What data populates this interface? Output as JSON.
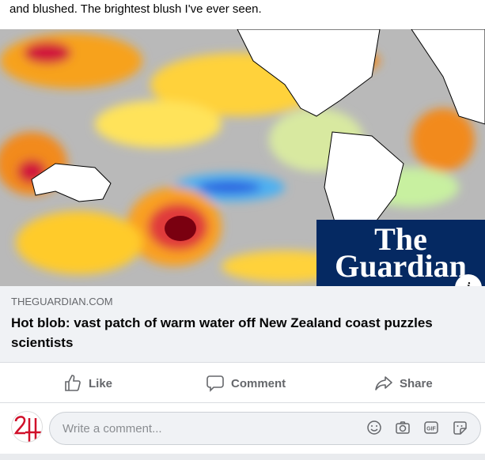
{
  "post": {
    "caption": "and blushed. The brightest blush I've ever seen."
  },
  "link_preview": {
    "logo": {
      "line1": "The",
      "line2": "Guardian",
      "bg_color": "#052962"
    },
    "info_label": "i",
    "domain": "THEGUARDIAN.COM",
    "title": "Hot blob: vast patch of warm water off New Zealand coast puzzles scientists"
  },
  "actions": [
    {
      "label": "Like",
      "icon": "thumbs-up-icon"
    },
    {
      "label": "Comment",
      "icon": "comment-icon"
    },
    {
      "label": "Share",
      "icon": "share-icon"
    }
  ],
  "comment": {
    "placeholder": "Write a comment...",
    "avatar_text": "24",
    "icons": [
      "emoji-icon",
      "camera-icon",
      "gif-icon",
      "sticker-icon"
    ]
  }
}
